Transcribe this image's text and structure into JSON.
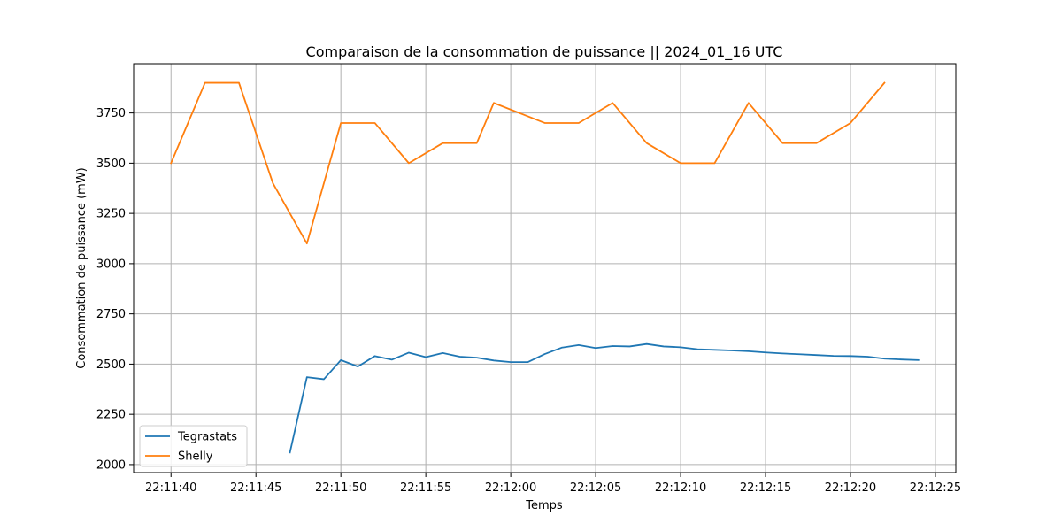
{
  "chart_data": {
    "type": "line",
    "title": "Comparaison de la consommation de puissance  ||  2024_01_16 UTC",
    "xlabel": "Temps",
    "ylabel": "Consommation de puissance (mW)",
    "x_ticks": [
      "22:11:40",
      "22:11:45",
      "22:11:50",
      "22:11:55",
      "22:12:00",
      "22:12:05",
      "22:12:10",
      "22:12:15",
      "22:12:20",
      "22:12:25"
    ],
    "y_ticks": [
      2000,
      2250,
      2500,
      2750,
      3000,
      3250,
      3500,
      3750
    ],
    "xlim": [
      "22:11:37.8",
      "22:12:26.2"
    ],
    "ylim": [
      1960,
      3995
    ],
    "grid": true,
    "legend_position": "lower-left",
    "series": [
      {
        "name": "Tegrastats",
        "color": "#1f77b4",
        "points": [
          {
            "x": "22:11:47",
            "y": 2060
          },
          {
            "x": "22:11:48",
            "y": 2435
          },
          {
            "x": "22:11:49",
            "y": 2425
          },
          {
            "x": "22:11:50",
            "y": 2520
          },
          {
            "x": "22:11:51",
            "y": 2488
          },
          {
            "x": "22:11:52",
            "y": 2540
          },
          {
            "x": "22:11:53",
            "y": 2522
          },
          {
            "x": "22:11:54",
            "y": 2557
          },
          {
            "x": "22:11:55",
            "y": 2535
          },
          {
            "x": "22:11:56",
            "y": 2555
          },
          {
            "x": "22:11:57",
            "y": 2537
          },
          {
            "x": "22:11:58",
            "y": 2532
          },
          {
            "x": "22:11:59",
            "y": 2518
          },
          {
            "x": "22:12:00",
            "y": 2510
          },
          {
            "x": "22:12:01",
            "y": 2510
          },
          {
            "x": "22:12:02",
            "y": 2550
          },
          {
            "x": "22:12:03",
            "y": 2582
          },
          {
            "x": "22:12:04",
            "y": 2595
          },
          {
            "x": "22:12:05",
            "y": 2580
          },
          {
            "x": "22:12:06",
            "y": 2590
          },
          {
            "x": "22:12:07",
            "y": 2588
          },
          {
            "x": "22:12:08",
            "y": 2600
          },
          {
            "x": "22:12:09",
            "y": 2588
          },
          {
            "x": "22:12:10",
            "y": 2584
          },
          {
            "x": "22:12:11",
            "y": 2574
          },
          {
            "x": "22:12:12",
            "y": 2571
          },
          {
            "x": "22:12:13",
            "y": 2568
          },
          {
            "x": "22:12:14",
            "y": 2564
          },
          {
            "x": "22:12:15",
            "y": 2558
          },
          {
            "x": "22:12:16",
            "y": 2553
          },
          {
            "x": "22:12:17",
            "y": 2549
          },
          {
            "x": "22:12:18",
            "y": 2545
          },
          {
            "x": "22:12:19",
            "y": 2541
          },
          {
            "x": "22:12:20",
            "y": 2540
          },
          {
            "x": "22:12:21",
            "y": 2537
          },
          {
            "x": "22:12:22",
            "y": 2527
          },
          {
            "x": "22:12:23",
            "y": 2523
          },
          {
            "x": "22:12:24",
            "y": 2520
          }
        ]
      },
      {
        "name": "Shelly",
        "color": "#ff7f0e",
        "points": [
          {
            "x": "22:11:40",
            "y": 3500
          },
          {
            "x": "22:11:42",
            "y": 3900
          },
          {
            "x": "22:11:44",
            "y": 3900
          },
          {
            "x": "22:11:46",
            "y": 3400
          },
          {
            "x": "22:11:48",
            "y": 3100
          },
          {
            "x": "22:11:50",
            "y": 3700
          },
          {
            "x": "22:11:52",
            "y": 3700
          },
          {
            "x": "22:11:54",
            "y": 3500
          },
          {
            "x": "22:11:56",
            "y": 3600
          },
          {
            "x": "22:11:58",
            "y": 3600
          },
          {
            "x": "22:11:59",
            "y": 3800
          },
          {
            "x": "22:12:02",
            "y": 3700
          },
          {
            "x": "22:12:04",
            "y": 3700
          },
          {
            "x": "22:12:06",
            "y": 3800
          },
          {
            "x": "22:12:08",
            "y": 3600
          },
          {
            "x": "22:12:10",
            "y": 3500
          },
          {
            "x": "22:12:12",
            "y": 3500
          },
          {
            "x": "22:12:14",
            "y": 3800
          },
          {
            "x": "22:12:16",
            "y": 3600
          },
          {
            "x": "22:12:18",
            "y": 3600
          },
          {
            "x": "22:12:20",
            "y": 3700
          },
          {
            "x": "22:12:22",
            "y": 3900
          }
        ]
      }
    ]
  }
}
